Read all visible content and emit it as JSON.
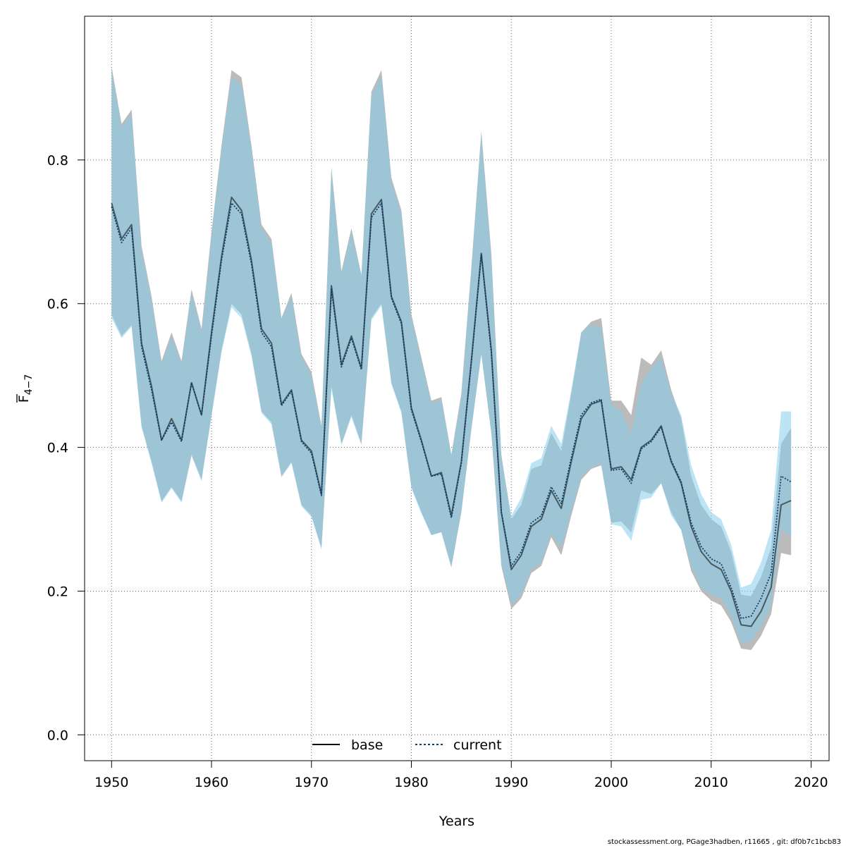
{
  "chart_data": {
    "type": "line",
    "xlabel": "Years",
    "ylabel": "F",
    "ylabel_sub": "4−7",
    "xlim": [
      1947.3,
      2021.8
    ],
    "ylim": [
      -0.036,
      1.0
    ],
    "xticks": [
      1950,
      1960,
      1970,
      1980,
      1990,
      2000,
      2010,
      2020
    ],
    "yticks": [
      0.0,
      0.2,
      0.4,
      0.6,
      0.8
    ],
    "ytick_labels": [
      "0.0",
      "0.2",
      "0.4",
      "0.6",
      "0.8"
    ],
    "grid": true,
    "legend_position": "bottom-center",
    "x": [
      1950,
      1951,
      1952,
      1953,
      1954,
      1955,
      1956,
      1957,
      1958,
      1959,
      1960,
      1961,
      1962,
      1963,
      1964,
      1965,
      1966,
      1967,
      1968,
      1969,
      1970,
      1971,
      1972,
      1973,
      1974,
      1975,
      1976,
      1977,
      1978,
      1979,
      1980,
      1981,
      1982,
      1983,
      1984,
      1985,
      1986,
      1987,
      1988,
      1989,
      1990,
      1991,
      1992,
      1993,
      1994,
      1995,
      1996,
      1997,
      1998,
      1999,
      2000,
      2001,
      2002,
      2003,
      2004,
      2005,
      2006,
      2007,
      2008,
      2009,
      2010,
      2011,
      2012,
      2013,
      2014,
      2015,
      2016,
      2017,
      2018
    ],
    "series": [
      {
        "name": "base",
        "color": "#000000",
        "band_color": "#b4b4b4",
        "values": [
          0.74,
          0.69,
          0.71,
          0.545,
          0.485,
          0.41,
          0.44,
          0.41,
          0.49,
          0.445,
          0.56,
          0.665,
          0.748,
          0.73,
          0.66,
          0.565,
          0.545,
          0.46,
          0.48,
          0.41,
          0.395,
          0.335,
          0.625,
          0.515,
          0.555,
          0.51,
          0.725,
          0.745,
          0.61,
          0.575,
          0.455,
          0.41,
          0.36,
          0.365,
          0.305,
          0.38,
          0.52,
          0.67,
          0.535,
          0.31,
          0.23,
          0.25,
          0.29,
          0.3,
          0.34,
          0.315,
          0.38,
          0.44,
          0.46,
          0.465,
          0.37,
          0.373,
          0.355,
          0.4,
          0.41,
          0.43,
          0.38,
          0.35,
          0.29,
          0.255,
          0.238,
          0.23,
          0.2,
          0.153,
          0.151,
          0.172,
          0.205,
          0.32,
          0.326
        ],
        "lower": [
          0.585,
          0.555,
          0.57,
          0.43,
          0.38,
          0.325,
          0.345,
          0.325,
          0.39,
          0.355,
          0.445,
          0.535,
          0.6,
          0.585,
          0.53,
          0.45,
          0.435,
          0.36,
          0.38,
          0.32,
          0.305,
          0.26,
          0.485,
          0.405,
          0.445,
          0.405,
          0.58,
          0.6,
          0.49,
          0.45,
          0.345,
          0.31,
          0.278,
          0.282,
          0.233,
          0.31,
          0.425,
          0.53,
          0.42,
          0.235,
          0.175,
          0.19,
          0.225,
          0.235,
          0.275,
          0.25,
          0.305,
          0.355,
          0.37,
          0.375,
          0.295,
          0.297,
          0.282,
          0.34,
          0.335,
          0.35,
          0.31,
          0.285,
          0.228,
          0.2,
          0.187,
          0.18,
          0.157,
          0.12,
          0.118,
          0.138,
          0.168,
          0.253,
          0.25
        ],
        "upper": [
          0.93,
          0.85,
          0.87,
          0.68,
          0.61,
          0.52,
          0.56,
          0.52,
          0.62,
          0.565,
          0.7,
          0.82,
          0.925,
          0.915,
          0.82,
          0.71,
          0.69,
          0.58,
          0.615,
          0.53,
          0.505,
          0.43,
          0.79,
          0.645,
          0.705,
          0.64,
          0.895,
          0.925,
          0.775,
          0.73,
          0.585,
          0.525,
          0.465,
          0.47,
          0.39,
          0.475,
          0.65,
          0.84,
          0.67,
          0.39,
          0.3,
          0.32,
          0.37,
          0.375,
          0.42,
          0.395,
          0.475,
          0.56,
          0.575,
          0.58,
          0.465,
          0.465,
          0.445,
          0.525,
          0.515,
          0.535,
          0.48,
          0.44,
          0.36,
          0.32,
          0.3,
          0.29,
          0.255,
          0.195,
          0.193,
          0.22,
          0.26,
          0.405,
          0.427
        ]
      },
      {
        "name": "current",
        "color": "#0b3d6e",
        "band_color": "#87ceeb",
        "values": [
          0.735,
          0.685,
          0.705,
          0.54,
          0.48,
          0.41,
          0.435,
          0.408,
          0.49,
          0.445,
          0.555,
          0.66,
          0.74,
          0.725,
          0.655,
          0.56,
          0.54,
          0.458,
          0.478,
          0.408,
          0.392,
          0.333,
          0.62,
          0.512,
          0.552,
          0.508,
          0.72,
          0.74,
          0.608,
          0.572,
          0.452,
          0.408,
          0.36,
          0.363,
          0.302,
          0.378,
          0.518,
          0.668,
          0.532,
          0.31,
          0.235,
          0.255,
          0.295,
          0.305,
          0.345,
          0.322,
          0.385,
          0.445,
          0.462,
          0.467,
          0.368,
          0.37,
          0.35,
          0.398,
          0.408,
          0.428,
          0.382,
          0.352,
          0.295,
          0.262,
          0.245,
          0.238,
          0.205,
          0.162,
          0.165,
          0.19,
          0.225,
          0.36,
          0.352
        ],
        "lower": [
          0.58,
          0.552,
          0.568,
          0.428,
          0.378,
          0.323,
          0.343,
          0.323,
          0.388,
          0.353,
          0.443,
          0.532,
          0.595,
          0.58,
          0.527,
          0.448,
          0.432,
          0.358,
          0.378,
          0.318,
          0.303,
          0.258,
          0.482,
          0.403,
          0.442,
          0.403,
          0.577,
          0.597,
          0.488,
          0.448,
          0.343,
          0.308,
          0.278,
          0.282,
          0.233,
          0.31,
          0.425,
          0.53,
          0.42,
          0.24,
          0.18,
          0.195,
          0.23,
          0.24,
          0.28,
          0.26,
          0.31,
          0.36,
          0.372,
          0.378,
          0.293,
          0.29,
          0.27,
          0.327,
          0.33,
          0.35,
          0.305,
          0.285,
          0.235,
          0.205,
          0.195,
          0.19,
          0.165,
          0.128,
          0.13,
          0.15,
          0.18,
          0.287,
          0.275
        ],
        "upper": [
          0.925,
          0.845,
          0.865,
          0.675,
          0.605,
          0.515,
          0.555,
          0.515,
          0.615,
          0.56,
          0.695,
          0.815,
          0.915,
          0.905,
          0.815,
          0.705,
          0.685,
          0.578,
          0.61,
          0.525,
          0.5,
          0.427,
          0.785,
          0.64,
          0.7,
          0.638,
          0.89,
          0.918,
          0.77,
          0.725,
          0.58,
          0.52,
          0.462,
          0.466,
          0.388,
          0.47,
          0.646,
          0.835,
          0.665,
          0.387,
          0.305,
          0.33,
          0.378,
          0.385,
          0.43,
          0.405,
          0.48,
          0.56,
          0.57,
          0.568,
          0.46,
          0.45,
          0.42,
          0.49,
          0.51,
          0.525,
          0.475,
          0.445,
          0.375,
          0.335,
          0.31,
          0.3,
          0.265,
          0.205,
          0.21,
          0.24,
          0.285,
          0.45,
          0.45
        ]
      }
    ]
  },
  "footer_text": "stockassessment.org, PGage3hadben, r11665 , git: df0b7c1bcb83"
}
